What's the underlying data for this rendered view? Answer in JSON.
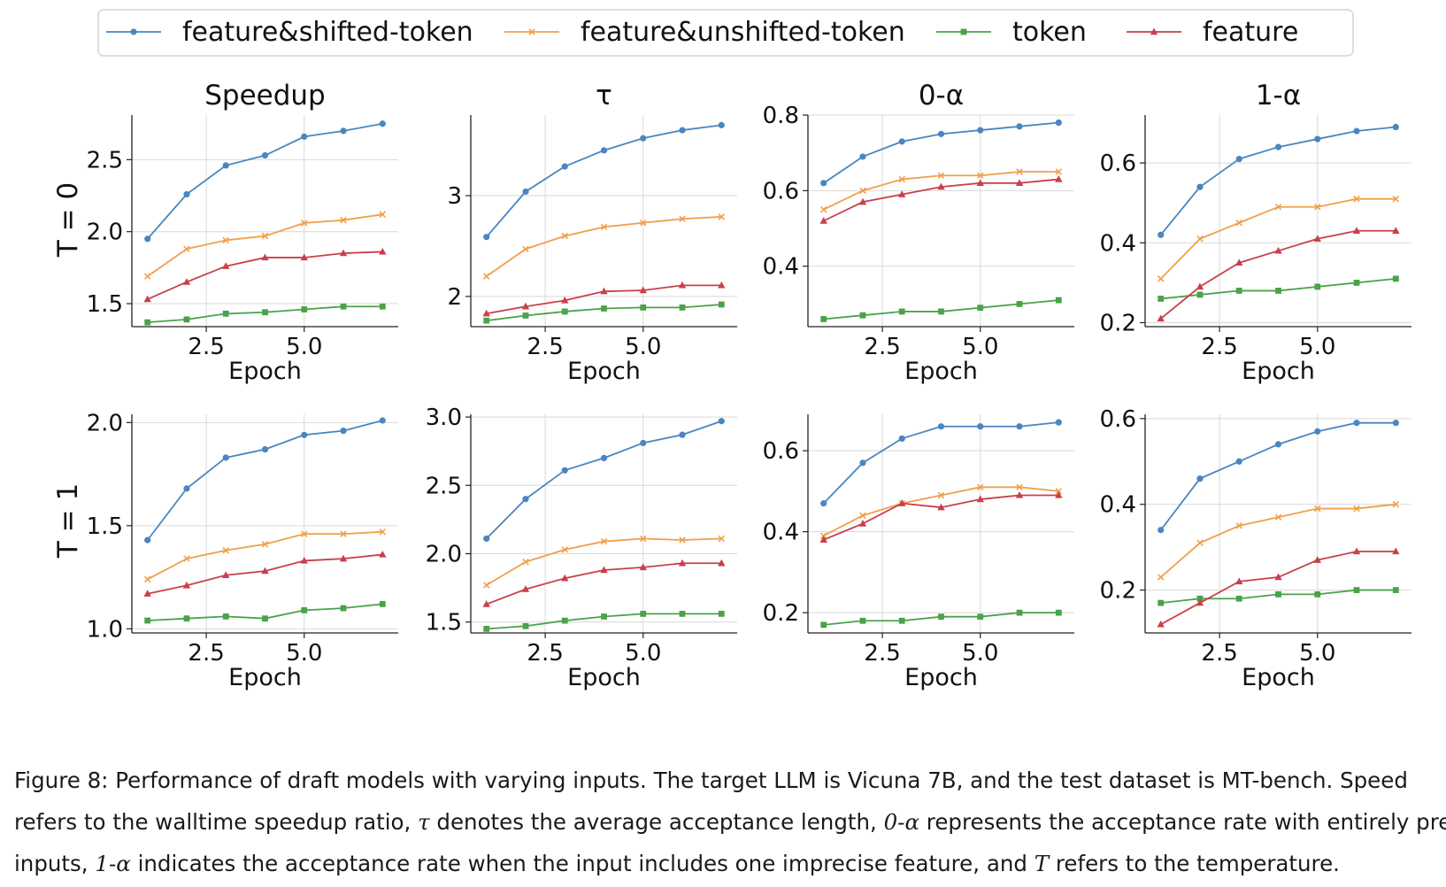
{
  "legend": {
    "items": [
      {
        "label": "feature&shifted-token",
        "color": "#4a86c0",
        "marker": "circle"
      },
      {
        "label": "feature&unshifted-token",
        "color": "#f0a04b",
        "marker": "x"
      },
      {
        "label": "token",
        "color": "#4aa24a",
        "marker": "square"
      },
      {
        "label": "feature",
        "color": "#c9404a",
        "marker": "triangle"
      }
    ]
  },
  "rows": [
    {
      "label": "T = 0"
    },
    {
      "label": "T = 1"
    }
  ],
  "chart_data": [
    {
      "type": "line",
      "row": 0,
      "col": 0,
      "title": "Speedup",
      "xlabel": "Epoch",
      "x": [
        1,
        2,
        3,
        4,
        5,
        6,
        7
      ],
      "xlim": [
        0.6,
        7.4
      ],
      "ylim": [
        1.34,
        2.81
      ],
      "xticks": [
        2.5,
        5.0
      ],
      "xticklabels": [
        "2.5",
        "5.0"
      ],
      "yticks": [
        1.5,
        2.0,
        2.5
      ],
      "yticklabels": [
        "1.5",
        "2.0",
        "2.5"
      ],
      "series": [
        {
          "name": "feature&shifted-token",
          "values": [
            1.95,
            2.26,
            2.46,
            2.53,
            2.66,
            2.7,
            2.75
          ]
        },
        {
          "name": "feature&unshifted-token",
          "values": [
            1.69,
            1.88,
            1.94,
            1.97,
            2.06,
            2.08,
            2.12
          ]
        },
        {
          "name": "token",
          "values": [
            1.37,
            1.39,
            1.43,
            1.44,
            1.46,
            1.48,
            1.48
          ]
        },
        {
          "name": "feature",
          "values": [
            1.53,
            1.65,
            1.76,
            1.82,
            1.82,
            1.85,
            1.86
          ]
        }
      ]
    },
    {
      "type": "line",
      "row": 0,
      "col": 1,
      "title": "τ",
      "xlabel": "Epoch",
      "x": [
        1,
        2,
        3,
        4,
        5,
        6,
        7
      ],
      "xlim": [
        0.6,
        7.4
      ],
      "ylim": [
        1.7,
        3.8
      ],
      "xticks": [
        2.5,
        5.0
      ],
      "xticklabels": [
        "2.5",
        "5.0"
      ],
      "yticks": [
        2,
        3
      ],
      "yticklabels": [
        "2",
        "3"
      ],
      "series": [
        {
          "name": "feature&shifted-token",
          "values": [
            2.59,
            3.04,
            3.29,
            3.45,
            3.57,
            3.65,
            3.7
          ]
        },
        {
          "name": "feature&unshifted-token",
          "values": [
            2.2,
            2.47,
            2.6,
            2.69,
            2.73,
            2.77,
            2.79
          ]
        },
        {
          "name": "token",
          "values": [
            1.76,
            1.81,
            1.85,
            1.88,
            1.89,
            1.89,
            1.92
          ]
        },
        {
          "name": "feature",
          "values": [
            1.83,
            1.9,
            1.96,
            2.05,
            2.06,
            2.11,
            2.11
          ]
        }
      ]
    },
    {
      "type": "line",
      "row": 0,
      "col": 2,
      "title": "0-α",
      "xlabel": "Epoch",
      "x": [
        1,
        2,
        3,
        4,
        5,
        6,
        7
      ],
      "xlim": [
        0.6,
        7.4
      ],
      "ylim": [
        0.24,
        0.8
      ],
      "xticks": [
        2.5,
        5.0
      ],
      "xticklabels": [
        "2.5",
        "5.0"
      ],
      "yticks": [
        0.4,
        0.6,
        0.8
      ],
      "yticklabels": [
        "0.4",
        "0.6",
        "0.8"
      ],
      "series": [
        {
          "name": "feature&shifted-token",
          "values": [
            0.62,
            0.69,
            0.73,
            0.75,
            0.76,
            0.77,
            0.78
          ]
        },
        {
          "name": "feature&unshifted-token",
          "values": [
            0.55,
            0.6,
            0.63,
            0.64,
            0.64,
            0.65,
            0.65
          ]
        },
        {
          "name": "token",
          "values": [
            0.26,
            0.27,
            0.28,
            0.28,
            0.29,
            0.3,
            0.31
          ]
        },
        {
          "name": "feature",
          "values": [
            0.52,
            0.57,
            0.59,
            0.61,
            0.62,
            0.62,
            0.63
          ]
        }
      ]
    },
    {
      "type": "line",
      "row": 0,
      "col": 3,
      "title": "1-α",
      "xlabel": "Epoch",
      "x": [
        1,
        2,
        3,
        4,
        5,
        6,
        7
      ],
      "xlim": [
        0.6,
        7.4
      ],
      "ylim": [
        0.19,
        0.72
      ],
      "xticks": [
        2.5,
        5.0
      ],
      "xticklabels": [
        "2.5",
        "5.0"
      ],
      "yticks": [
        0.2,
        0.4,
        0.6
      ],
      "yticklabels": [
        "0.2",
        "0.4",
        "0.6"
      ],
      "series": [
        {
          "name": "feature&shifted-token",
          "values": [
            0.42,
            0.54,
            0.61,
            0.64,
            0.66,
            0.68,
            0.69
          ]
        },
        {
          "name": "feature&unshifted-token",
          "values": [
            0.31,
            0.41,
            0.45,
            0.49,
            0.49,
            0.51,
            0.51
          ]
        },
        {
          "name": "token",
          "values": [
            0.26,
            0.27,
            0.28,
            0.28,
            0.29,
            0.3,
            0.31
          ]
        },
        {
          "name": "feature",
          "values": [
            0.21,
            0.29,
            0.35,
            0.38,
            0.41,
            0.43,
            0.43
          ]
        }
      ]
    },
    {
      "type": "line",
      "row": 1,
      "col": 0,
      "title": "",
      "xlabel": "Epoch",
      "x": [
        1,
        2,
        3,
        4,
        5,
        6,
        7
      ],
      "xlim": [
        0.6,
        7.4
      ],
      "ylim": [
        0.98,
        2.04
      ],
      "xticks": [
        2.5,
        5.0
      ],
      "xticklabels": [
        "2.5",
        "5.0"
      ],
      "yticks": [
        1.0,
        1.5,
        2.0
      ],
      "yticklabels": [
        "1.0",
        "1.5",
        "2.0"
      ],
      "series": [
        {
          "name": "feature&shifted-token",
          "values": [
            1.43,
            1.68,
            1.83,
            1.87,
            1.94,
            1.96,
            2.01
          ]
        },
        {
          "name": "feature&unshifted-token",
          "values": [
            1.24,
            1.34,
            1.38,
            1.41,
            1.46,
            1.46,
            1.47
          ]
        },
        {
          "name": "token",
          "values": [
            1.04,
            1.05,
            1.06,
            1.05,
            1.09,
            1.1,
            1.12
          ]
        },
        {
          "name": "feature",
          "values": [
            1.17,
            1.21,
            1.26,
            1.28,
            1.33,
            1.34,
            1.36
          ]
        }
      ]
    },
    {
      "type": "line",
      "row": 1,
      "col": 1,
      "title": "",
      "xlabel": "Epoch",
      "x": [
        1,
        2,
        3,
        4,
        5,
        6,
        7
      ],
      "xlim": [
        0.6,
        7.4
      ],
      "ylim": [
        1.42,
        3.02
      ],
      "xticks": [
        2.5,
        5.0
      ],
      "xticklabels": [
        "2.5",
        "5.0"
      ],
      "yticks": [
        1.5,
        2.0,
        2.5,
        3.0
      ],
      "yticklabels": [
        "1.5",
        "2.0",
        "2.5",
        "3.0"
      ],
      "series": [
        {
          "name": "feature&shifted-token",
          "values": [
            2.11,
            2.4,
            2.61,
            2.7,
            2.81,
            2.87,
            2.97
          ]
        },
        {
          "name": "feature&unshifted-token",
          "values": [
            1.77,
            1.94,
            2.03,
            2.09,
            2.11,
            2.1,
            2.11
          ]
        },
        {
          "name": "token",
          "values": [
            1.45,
            1.47,
            1.51,
            1.54,
            1.56,
            1.56,
            1.56
          ]
        },
        {
          "name": "feature",
          "values": [
            1.63,
            1.74,
            1.82,
            1.88,
            1.9,
            1.93,
            1.93
          ]
        }
      ]
    },
    {
      "type": "line",
      "row": 1,
      "col": 2,
      "title": "",
      "xlabel": "Epoch",
      "x": [
        1,
        2,
        3,
        4,
        5,
        6,
        7
      ],
      "xlim": [
        0.6,
        7.4
      ],
      "ylim": [
        0.15,
        0.69
      ],
      "xticks": [
        2.5,
        5.0
      ],
      "xticklabels": [
        "2.5",
        "5.0"
      ],
      "yticks": [
        0.2,
        0.4,
        0.6
      ],
      "yticklabels": [
        "0.2",
        "0.4",
        "0.6"
      ],
      "series": [
        {
          "name": "feature&shifted-token",
          "values": [
            0.47,
            0.57,
            0.63,
            0.66,
            0.66,
            0.66,
            0.67
          ]
        },
        {
          "name": "feature&unshifted-token",
          "values": [
            0.39,
            0.44,
            0.47,
            0.49,
            0.51,
            0.51,
            0.5
          ]
        },
        {
          "name": "token",
          "values": [
            0.17,
            0.18,
            0.18,
            0.19,
            0.19,
            0.2,
            0.2
          ]
        },
        {
          "name": "feature",
          "values": [
            0.38,
            0.42,
            0.47,
            0.46,
            0.48,
            0.49,
            0.49
          ]
        }
      ]
    },
    {
      "type": "line",
      "row": 1,
      "col": 3,
      "title": "",
      "xlabel": "Epoch",
      "x": [
        1,
        2,
        3,
        4,
        5,
        6,
        7
      ],
      "xlim": [
        0.6,
        7.4
      ],
      "ylim": [
        0.1,
        0.61
      ],
      "xticks": [
        2.5,
        5.0
      ],
      "xticklabels": [
        "2.5",
        "5.0"
      ],
      "yticks": [
        0.2,
        0.4,
        0.6
      ],
      "yticklabels": [
        "0.2",
        "0.4",
        "0.6"
      ],
      "series": [
        {
          "name": "feature&shifted-token",
          "values": [
            0.34,
            0.46,
            0.5,
            0.54,
            0.57,
            0.59,
            0.59
          ]
        },
        {
          "name": "feature&unshifted-token",
          "values": [
            0.23,
            0.31,
            0.35,
            0.37,
            0.39,
            0.39,
            0.4
          ]
        },
        {
          "name": "token",
          "values": [
            0.17,
            0.18,
            0.18,
            0.19,
            0.19,
            0.2,
            0.2
          ]
        },
        {
          "name": "feature",
          "values": [
            0.12,
            0.17,
            0.22,
            0.23,
            0.27,
            0.29,
            0.29
          ]
        }
      ]
    }
  ],
  "caption": {
    "line1": "Figure 8: Performance of draft models with varying inputs. The target LLM is Vicuna 7B, and the test dataset is MT-bench. Speed",
    "line2_a": "refers to the walltime speedup ratio, ",
    "tau": "τ",
    "line2_b": " denotes the average acceptance length, ",
    "zero_alpha": "0-α",
    "line2_c": " represents the acceptance rate with entirely precise",
    "line3_a": "inputs, ",
    "one_alpha": "1-α",
    "line3_b": " indicates the acceptance rate when the input includes one imprecise feature, and ",
    "temp_symbol": "T",
    "line3_c": " refers to the temperature."
  }
}
